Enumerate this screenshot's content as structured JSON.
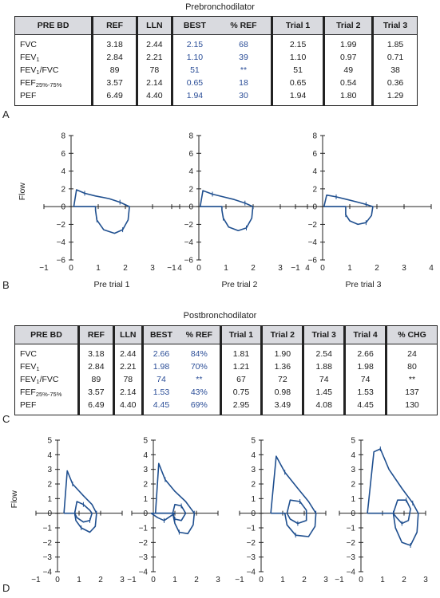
{
  "pre": {
    "title": "Prebronchodilator",
    "headers": [
      "PRE BD",
      "REF",
      "LLN",
      "BEST",
      "% REF",
      "Trial 1",
      "Trial 2",
      "Trial 3"
    ],
    "rows": [
      {
        "label": "FVC",
        "sub": "",
        "label_tail": "",
        "ref": "3.18",
        "lln": "2.44",
        "best": "2.15",
        "pct": "68",
        "t1": "2.15",
        "t2": "1.99",
        "t3": "1.85"
      },
      {
        "label": "FEV",
        "sub": "1",
        "label_tail": "",
        "ref": "2.84",
        "lln": "2.21",
        "best": "1.10",
        "pct": "39",
        "t1": "1.10",
        "t2": "0.97",
        "t3": "0.71"
      },
      {
        "label": "FEV",
        "sub": "1",
        "label_tail": "/FVC",
        "ref": "89",
        "lln": "78",
        "best": "51",
        "pct": "**",
        "t1": "51",
        "t2": "49",
        "t3": "38"
      },
      {
        "label": "FEF",
        "sub": "25%-75%",
        "label_tail": "",
        "ref": "3.57",
        "lln": "2.14",
        "best": "0.65",
        "pct": "18",
        "t1": "0.65",
        "t2": "0.54",
        "t3": "0.36"
      },
      {
        "label": "PEF",
        "sub": "",
        "label_tail": "",
        "ref": "6.49",
        "lln": "4.40",
        "best": "1.94",
        "pct": "30",
        "t1": "1.94",
        "t2": "1.80",
        "t3": "1.29"
      }
    ]
  },
  "post": {
    "title": "Postbronchodilator",
    "headers": [
      "PRE BD",
      "REF",
      "LLN",
      "BEST",
      "% REF",
      "Trial 1",
      "Trial 2",
      "Trial 3",
      "Trial 4",
      "% CHG"
    ],
    "rows": [
      {
        "label": "FVC",
        "sub": "",
        "label_tail": "",
        "ref": "3.18",
        "lln": "2.44",
        "best": "2.66",
        "pct": "84%",
        "t1": "1.81",
        "t2": "1.90",
        "t3": "2.54",
        "t4": "2.66",
        "chg": "24"
      },
      {
        "label": "FEV",
        "sub": "1",
        "label_tail": "",
        "ref": "2.84",
        "lln": "2.21",
        "best": "1.98",
        "pct": "70%",
        "t1": "1.21",
        "t2": "1.36",
        "t3": "1.88",
        "t4": "1.98",
        "chg": "80"
      },
      {
        "label": "FEV",
        "sub": "1",
        "label_tail": "/FVC",
        "ref": "89",
        "lln": "78",
        "best": "74",
        "pct": "**",
        "t1": "67",
        "t2": "72",
        "t3": "74",
        "t4": "74",
        "chg": "**"
      },
      {
        "label": "FEF",
        "sub": "25%-75%",
        "label_tail": "",
        "ref": "3.57",
        "lln": "2.14",
        "best": "1.53",
        "pct": "43%",
        "t1": "0.75",
        "t2": "0.98",
        "t3": "1.45",
        "t4": "1.53",
        "chg": "137"
      },
      {
        "label": "PEF",
        "sub": "",
        "label_tail": "",
        "ref": "6.49",
        "lln": "4.40",
        "best": "4.45",
        "pct": "69%",
        "t1": "2.95",
        "t2": "3.49",
        "t3": "4.08",
        "t4": "4.45",
        "chg": "130"
      }
    ]
  },
  "panel_letters": {
    "a": "A",
    "b": "B",
    "c": "C",
    "d": "D"
  },
  "colors": {
    "ink": "#222222",
    "loop_blue": "#1f4f8f",
    "value_blue": "#2a4d97",
    "header_gray": "#d9dadf"
  },
  "chart_data": [
    {
      "type": "line",
      "title": "",
      "xlabel": "Pre trial 1",
      "ylabel": "Flow",
      "xlim": [
        -1,
        4
      ],
      "ylim": [
        -6,
        8
      ],
      "x_ticks": [
        "−1",
        "0",
        "1",
        "2",
        "3",
        "4"
      ],
      "y_ticks": [
        "−6",
        "−4",
        "−2",
        "0",
        "2",
        "4",
        "6",
        "8"
      ],
      "series": [
        {
          "points": [
            [
              0.1,
              0
            ],
            [
              0.2,
              1.9
            ],
            [
              0.5,
              1.5
            ],
            [
              0.9,
              1.2
            ],
            [
              1.4,
              0.9
            ],
            [
              1.8,
              0.5
            ],
            [
              2.15,
              0
            ],
            [
              2.1,
              -1.5
            ],
            [
              1.9,
              -2.6
            ],
            [
              1.6,
              -3.0
            ],
            [
              1.2,
              -2.6
            ],
            [
              0.95,
              -1.5
            ],
            [
              0.9,
              -0.4
            ],
            [
              0.9,
              0
            ]
          ]
        }
      ]
    },
    {
      "type": "line",
      "title": "",
      "xlabel": "Pre trial 2",
      "ylabel": "",
      "xlim": [
        -1,
        4
      ],
      "ylim": [
        -6,
        8
      ],
      "x_ticks": [
        "−1",
        "0",
        "1",
        "2",
        "3",
        "4"
      ],
      "y_ticks": [
        "−6",
        "−4",
        "−2",
        "0",
        "2",
        "4",
        "6",
        "8"
      ],
      "series": [
        {
          "points": [
            [
              0.05,
              0
            ],
            [
              0.15,
              1.8
            ],
            [
              0.5,
              1.4
            ],
            [
              0.9,
              1.1
            ],
            [
              1.3,
              0.8
            ],
            [
              1.7,
              0.4
            ],
            [
              1.99,
              0
            ],
            [
              1.95,
              -1.3
            ],
            [
              1.75,
              -2.4
            ],
            [
              1.45,
              -2.7
            ],
            [
              1.1,
              -2.3
            ],
            [
              0.9,
              -1.3
            ],
            [
              0.85,
              -0.4
            ],
            [
              0.85,
              0
            ]
          ]
        }
      ]
    },
    {
      "type": "line",
      "title": "",
      "xlabel": "Pre trial 3",
      "ylabel": "",
      "xlim": [
        -1,
        4
      ],
      "ylim": [
        -6,
        8
      ],
      "x_ticks": [
        "−1",
        "0",
        "1",
        "2",
        "3",
        "4"
      ],
      "y_ticks": [
        "−6",
        "−4",
        "−2",
        "0",
        "2",
        "4",
        "6",
        "8"
      ],
      "series": [
        {
          "points": [
            [
              0.05,
              0
            ],
            [
              0.15,
              1.3
            ],
            [
              0.5,
              1.1
            ],
            [
              0.9,
              0.8
            ],
            [
              1.3,
              0.5
            ],
            [
              1.6,
              0.25
            ],
            [
              1.85,
              0
            ],
            [
              1.8,
              -1.0
            ],
            [
              1.6,
              -1.8
            ],
            [
              1.3,
              -2.0
            ],
            [
              1.0,
              -1.6
            ],
            [
              0.85,
              -0.9
            ],
            [
              0.85,
              -0.3
            ],
            [
              0.85,
              0
            ]
          ]
        }
      ]
    },
    {
      "type": "line",
      "title": "",
      "xlabel": "",
      "ylabel": "Flow",
      "xlim": [
        -1,
        3
      ],
      "ylim": [
        -4,
        5
      ],
      "x_ticks": [
        "−1",
        "0",
        "1",
        "2",
        "3"
      ],
      "y_ticks": [
        "−4",
        "−3",
        "−2",
        "−1",
        "0",
        "1",
        "2",
        "3",
        "4",
        "5"
      ],
      "series": [
        {
          "points": [
            [
              0.3,
              0
            ],
            [
              0.45,
              2.9
            ],
            [
              0.7,
              2.0
            ],
            [
              1.2,
              1.2
            ],
            [
              1.6,
              0.6
            ],
            [
              1.81,
              0
            ],
            [
              1.75,
              -0.9
            ],
            [
              1.5,
              -1.3
            ],
            [
              1.1,
              -1.0
            ],
            [
              0.85,
              -0.5
            ],
            [
              0.8,
              0
            ]
          ]
        },
        {
          "points": [
            [
              0.8,
              0
            ],
            [
              0.9,
              0.8
            ],
            [
              1.2,
              0.6
            ],
            [
              1.5,
              0.2
            ],
            [
              1.6,
              0
            ],
            [
              1.5,
              -0.5
            ],
            [
              1.2,
              -0.6
            ],
            [
              0.9,
              -0.3
            ],
            [
              0.8,
              0
            ]
          ]
        }
      ]
    },
    {
      "type": "line",
      "title": "",
      "xlabel": "",
      "ylabel": "",
      "xlim": [
        -1,
        3
      ],
      "ylim": [
        -4,
        5
      ],
      "x_ticks": [
        "−1",
        "0",
        "1",
        "2",
        "3"
      ],
      "y_ticks": [
        "−4",
        "−3",
        "−2",
        "−1",
        "0",
        "1",
        "2",
        "3",
        "4",
        "5"
      ],
      "series": [
        {
          "points": [
            [
              0.1,
              0
            ],
            [
              0.25,
              3.4
            ],
            [
              0.55,
              2.3
            ],
            [
              1.0,
              1.5
            ],
            [
              1.5,
              0.8
            ],
            [
              1.9,
              0
            ],
            [
              1.85,
              -0.8
            ],
            [
              1.6,
              -1.4
            ],
            [
              1.2,
              -1.3
            ],
            [
              1.0,
              -0.7
            ],
            [
              0.9,
              0
            ]
          ]
        },
        {
          "points": [
            [
              -0.1,
              0
            ],
            [
              0.2,
              -0.3
            ],
            [
              0.5,
              -0.5
            ],
            [
              0.8,
              -0.2
            ],
            [
              1.0,
              0
            ]
          ]
        },
        {
          "points": [
            [
              0.9,
              0
            ],
            [
              1.0,
              0.6
            ],
            [
              1.3,
              0.5
            ],
            [
              1.5,
              0
            ],
            [
              1.3,
              -0.5
            ],
            [
              1.0,
              -0.4
            ],
            [
              0.9,
              0
            ]
          ]
        }
      ]
    },
    {
      "type": "line",
      "title": "",
      "xlabel": "",
      "ylabel": "",
      "xlim": [
        -1,
        3
      ],
      "ylim": [
        -4,
        5
      ],
      "x_ticks": [
        "−1",
        "0",
        "1",
        "2",
        "3"
      ],
      "y_ticks": [
        "−4",
        "−3",
        "−2",
        "−1",
        "0",
        "1",
        "2",
        "3",
        "4",
        "5"
      ],
      "series": [
        {
          "points": [
            [
              0.45,
              0
            ],
            [
              0.7,
              3.9
            ],
            [
              1.1,
              2.8
            ],
            [
              1.7,
              1.7
            ],
            [
              2.2,
              0.8
            ],
            [
              2.54,
              0
            ],
            [
              2.5,
              -0.9
            ],
            [
              2.2,
              -1.6
            ],
            [
              1.6,
              -1.5
            ],
            [
              1.2,
              -0.8
            ],
            [
              1.1,
              0
            ]
          ]
        },
        {
          "points": [
            [
              1.2,
              0
            ],
            [
              1.35,
              0.9
            ],
            [
              1.8,
              0.8
            ],
            [
              2.1,
              0.2
            ],
            [
              2.1,
              -0.5
            ],
            [
              1.7,
              -0.7
            ],
            [
              1.35,
              -0.4
            ],
            [
              1.2,
              0
            ]
          ]
        }
      ]
    },
    {
      "type": "line",
      "title": "",
      "xlabel": "",
      "ylabel": "",
      "xlim": [
        -1,
        3
      ],
      "ylim": [
        -4,
        5
      ],
      "x_ticks": [
        "−1",
        "0",
        "1",
        "2",
        "3"
      ],
      "y_ticks": [
        "−4",
        "−3",
        "−2",
        "−1",
        "0",
        "1",
        "2",
        "3",
        "4",
        "5"
      ],
      "series": [
        {
          "points": [
            [
              0.3,
              0
            ],
            [
              0.6,
              4.2
            ],
            [
              0.9,
              4.4
            ],
            [
              1.3,
              3.0
            ],
            [
              1.9,
              1.7
            ],
            [
              2.4,
              0.7
            ],
            [
              2.66,
              0
            ],
            [
              2.6,
              -1.3
            ],
            [
              2.3,
              -2.2
            ],
            [
              1.9,
              -2.0
            ],
            [
              1.6,
              -1.0
            ],
            [
              1.5,
              0
            ]
          ]
        },
        {
          "points": [
            [
              1.5,
              0
            ],
            [
              1.7,
              0.9
            ],
            [
              2.1,
              0.9
            ],
            [
              2.3,
              0.3
            ],
            [
              2.2,
              -0.5
            ],
            [
              1.9,
              -0.7
            ],
            [
              1.65,
              -0.3
            ],
            [
              1.5,
              0
            ]
          ]
        }
      ]
    }
  ]
}
